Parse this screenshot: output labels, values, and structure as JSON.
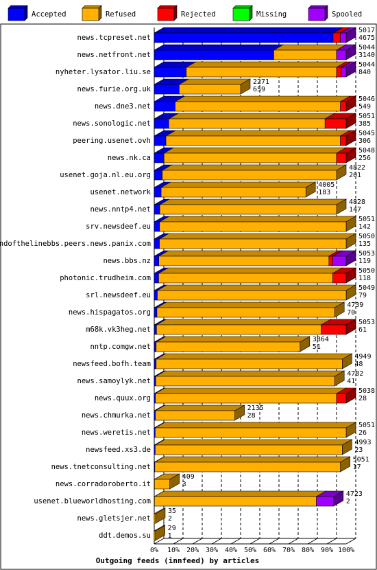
{
  "chart_data": {
    "type": "bar",
    "orientation": "horizontal",
    "stacked": true,
    "three_d": true,
    "title": "Outgoing feeds (innfeed) by articles",
    "x_ticks": [
      "0%",
      "10%",
      "20%",
      "30%",
      "40%",
      "50%",
      "60%",
      "70%",
      "80%",
      "90%",
      "100%"
    ],
    "xlim": [
      0,
      100
    ],
    "legend_position": "top",
    "series": [
      {
        "name": "Accepted",
        "color": "#0000ff"
      },
      {
        "name": "Refused",
        "color": "#ffb000"
      },
      {
        "name": "Rejected",
        "color": "#ff0000"
      },
      {
        "name": "Missing",
        "color": "#00ff00"
      },
      {
        "name": "Spooled",
        "color": "#a000ff"
      }
    ],
    "bars": [
      {
        "name": "news.tcpreset.net",
        "offered": "5017",
        "accepted": "4675",
        "segments": [
          93.2,
          0,
          3.8,
          0,
          3.0
        ]
      },
      {
        "name": "news.netfront.net",
        "offered": "5044",
        "accepted": "3140",
        "segments": [
          62.3,
          32.7,
          0,
          0,
          5.0
        ]
      },
      {
        "name": "nyheter.lysator.liu.se",
        "offered": "5044",
        "accepted": "840",
        "segments": [
          16.7,
          78.3,
          2.5,
          0,
          2.5
        ]
      },
      {
        "name": "news.furie.org.uk",
        "offered": "2271",
        "accepted": "659",
        "segments": [
          13.0,
          32.0,
          0,
          0,
          0
        ]
      },
      {
        "name": "news.dne3.net",
        "offered": "5046",
        "accepted": "549",
        "segments": [
          10.9,
          86.1,
          3.0,
          0,
          0
        ]
      },
      {
        "name": "news.sonologic.net",
        "offered": "5051",
        "accepted": "385",
        "segments": [
          7.6,
          81.4,
          11.0,
          0,
          0
        ]
      },
      {
        "name": "peering.usenet.ovh",
        "offered": "5045",
        "accepted": "306",
        "segments": [
          6.1,
          90.9,
          3.0,
          0,
          0
        ]
      },
      {
        "name": "news.nk.ca",
        "offered": "5048",
        "accepted": "256",
        "segments": [
          5.1,
          89.9,
          5.0,
          0,
          0
        ]
      },
      {
        "name": "usenet.goja.nl.eu.org",
        "offered": "4822",
        "accepted": "201",
        "segments": [
          4.2,
          90.8,
          0,
          0,
          0
        ]
      },
      {
        "name": "usenet.network",
        "offered": "4005",
        "accepted": "183",
        "segments": [
          3.6,
          75.4,
          0,
          0,
          0
        ]
      },
      {
        "name": "news.nntp4.net",
        "offered": "4828",
        "accepted": "147",
        "segments": [
          2.9,
          92.1,
          0,
          0,
          0
        ]
      },
      {
        "name": "srv.newsdeef.eu",
        "offered": "5051",
        "accepted": "142",
        "segments": [
          2.8,
          97.2,
          0,
          0,
          0
        ]
      },
      {
        "name": "endofthelinebbs.peers.news.panix.com",
        "offered": "5050",
        "accepted": "135",
        "segments": [
          2.7,
          97.3,
          0,
          0,
          0
        ]
      },
      {
        "name": "news.bbs.nz",
        "offered": "5053",
        "accepted": "119",
        "segments": [
          2.4,
          88.6,
          2.0,
          0,
          7.0
        ]
      },
      {
        "name": "photonic.trudheim.com",
        "offered": "5050",
        "accepted": "118",
        "segments": [
          2.3,
          90.7,
          7.0,
          0,
          0
        ]
      },
      {
        "name": "srl.newsdeef.eu",
        "offered": "5049",
        "accepted": "79",
        "segments": [
          1.6,
          98.4,
          0,
          0,
          0
        ]
      },
      {
        "name": "news.hispagatos.org",
        "offered": "4739",
        "accepted": "70",
        "segments": [
          1.4,
          92.6,
          0,
          0,
          0
        ]
      },
      {
        "name": "m68k.vk3heg.net",
        "offered": "5053",
        "accepted": "61",
        "segments": [
          1.2,
          85.8,
          13.0,
          0,
          0
        ]
      },
      {
        "name": "nntp.comgw.net",
        "offered": "3864",
        "accepted": "51",
        "segments": [
          1.0,
          75.0,
          0,
          0,
          0
        ]
      },
      {
        "name": "newsfeed.bofh.team",
        "offered": "4949",
        "accepted": "48",
        "segments": [
          1.0,
          97.0,
          0,
          0,
          0
        ]
      },
      {
        "name": "news.samoylyk.net",
        "offered": "4782",
        "accepted": "41",
        "segments": [
          0.8,
          93.2,
          0,
          0,
          0
        ]
      },
      {
        "name": "news.quux.org",
        "offered": "5038",
        "accepted": "28",
        "segments": [
          0.6,
          94.4,
          5.0,
          0,
          0
        ]
      },
      {
        "name": "news.chmurka.net",
        "offered": "2135",
        "accepted": "28",
        "segments": [
          0.6,
          41.4,
          0,
          0,
          0
        ]
      },
      {
        "name": "news.weretis.net",
        "offered": "5051",
        "accepted": "26",
        "segments": [
          0.5,
          99.5,
          0,
          0,
          0
        ]
      },
      {
        "name": "newsfeed.xs3.de",
        "offered": "4993",
        "accepted": "23",
        "segments": [
          0.5,
          97.5,
          0,
          0,
          0
        ]
      },
      {
        "name": "news.tnetconsulting.net",
        "offered": "5051",
        "accepted": "17",
        "segments": [
          0.3,
          96.7,
          0,
          0,
          0
        ]
      },
      {
        "name": "news.corradoroberto.it",
        "offered": "409",
        "accepted": "3",
        "segments": [
          0.1,
          8.0,
          0,
          0,
          0
        ]
      },
      {
        "name": "usenet.blueworldhosting.com",
        "offered": "4723",
        "accepted": "2",
        "segments": [
          0.1,
          84.4,
          0,
          0,
          9.0
        ]
      },
      {
        "name": "news.gletsjer.net",
        "offered": "35",
        "accepted": "2",
        "segments": [
          0,
          0.7,
          0,
          0,
          0
        ]
      },
      {
        "name": "ddt.demos.su",
        "offered": "29",
        "accepted": "1",
        "segments": [
          0,
          0.6,
          0,
          0,
          0
        ]
      }
    ]
  }
}
